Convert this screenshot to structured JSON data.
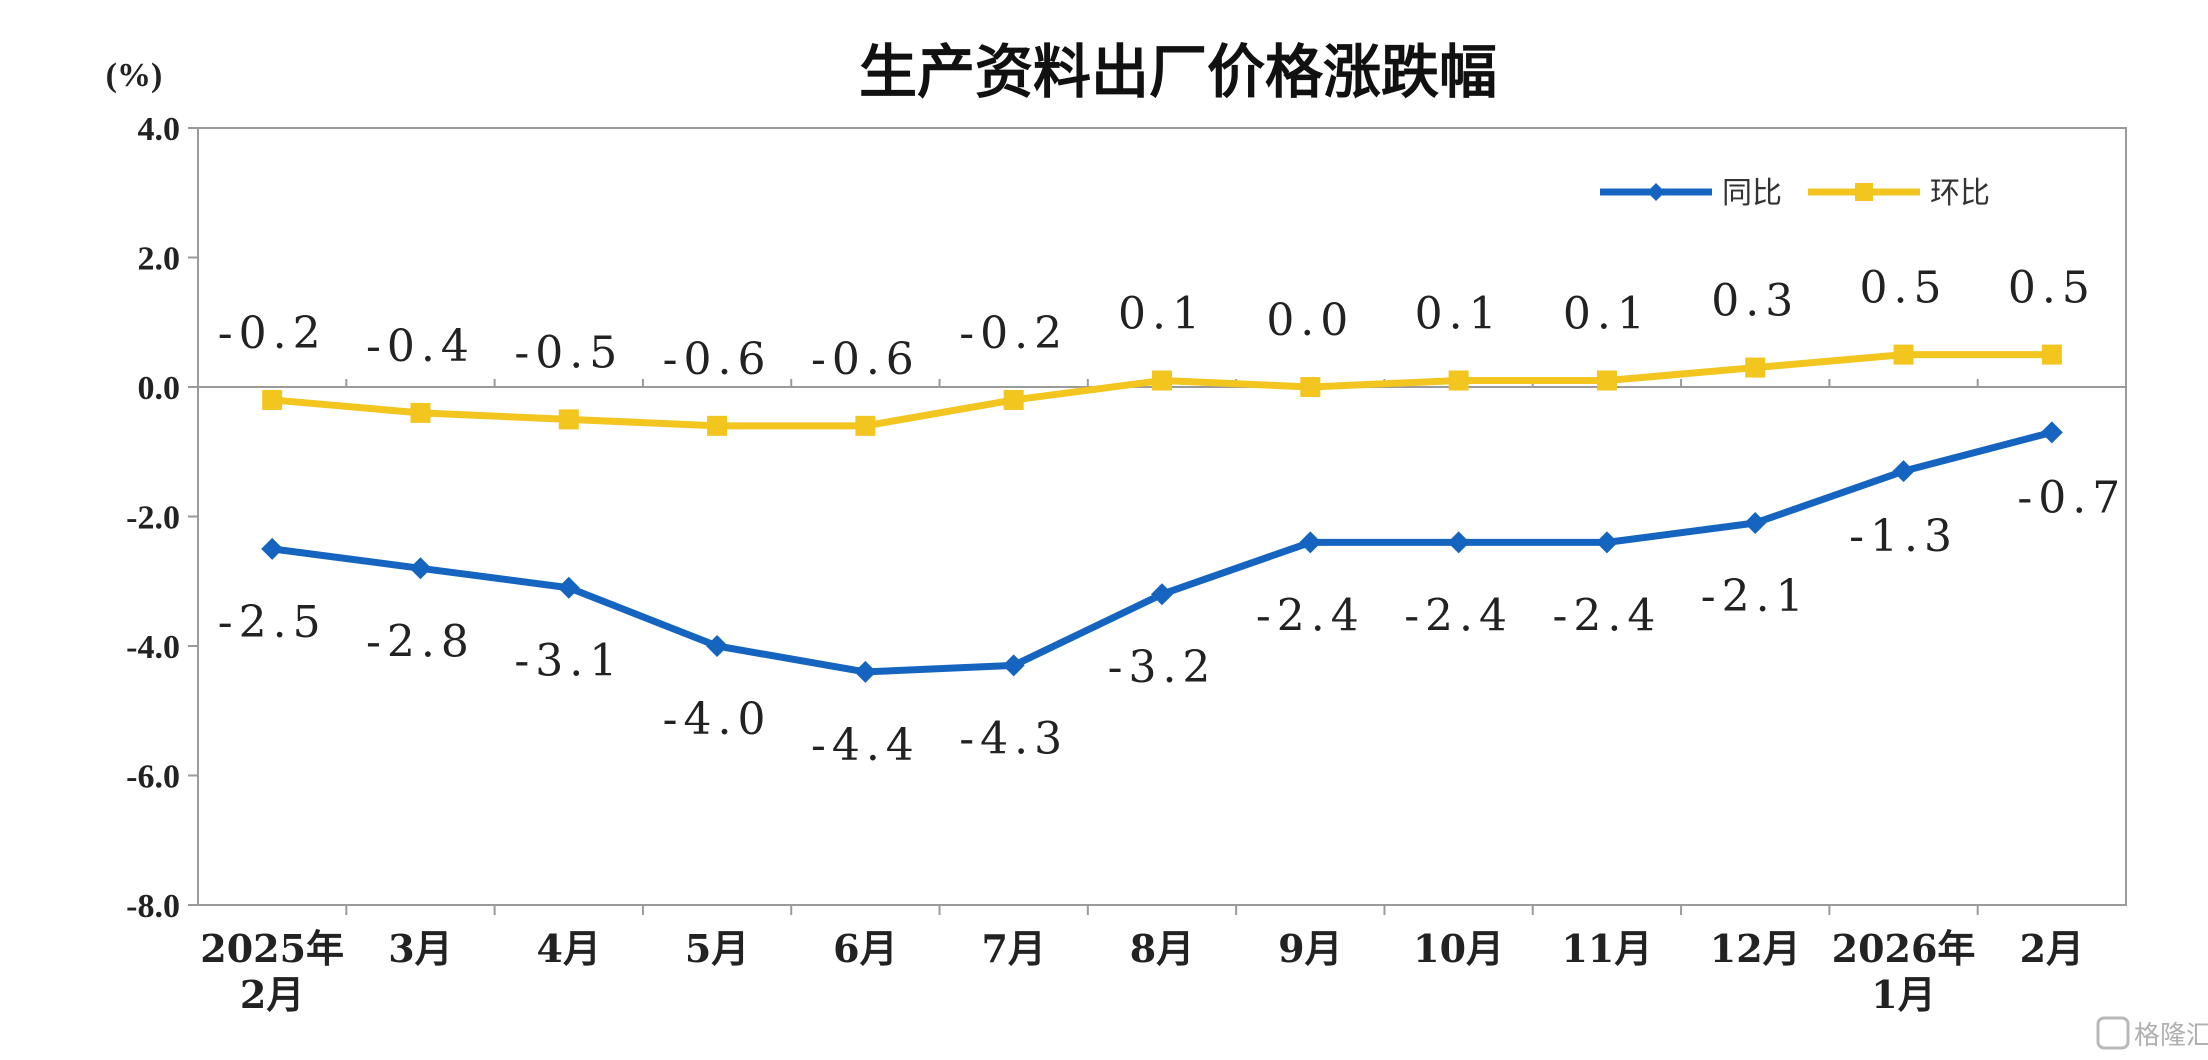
{
  "watermark": "格隆汇",
  "chart_data": {
    "type": "line",
    "title": "生产资料出厂价格涨跌幅",
    "unit": "(%)",
    "ylim": [
      -8.0,
      4.0
    ],
    "yticks": [
      "4.0",
      "2.0",
      "0.0",
      "-2.0",
      "-4.0",
      "-6.0",
      "-8.0"
    ],
    "ytick_values": [
      4,
      2,
      0,
      -2,
      -4,
      -6,
      -8
    ],
    "categories": [
      [
        "2025年",
        "2月"
      ],
      [
        "3月"
      ],
      [
        "4月"
      ],
      [
        "5月"
      ],
      [
        "6月"
      ],
      [
        "7月"
      ],
      [
        "8月"
      ],
      [
        "9月"
      ],
      [
        "10月"
      ],
      [
        "11月"
      ],
      [
        "12月"
      ],
      [
        "2026年",
        "1月"
      ],
      [
        "2月"
      ]
    ],
    "legend_position": "top-right",
    "grid": false,
    "series": [
      {
        "name": "同比",
        "color": "#1565C0",
        "marker": "diamond",
        "label_position": "below",
        "values": [
          -2.5,
          -2.8,
          -3.1,
          -4.0,
          -4.4,
          -4.3,
          -3.2,
          -2.4,
          -2.4,
          -2.4,
          -2.1,
          -1.3,
          -0.7
        ],
        "labels": [
          "-2.5",
          "-2.8",
          "-3.1",
          "-4.0",
          "-4.4",
          "-4.3",
          "-3.2",
          "-2.4",
          "-2.4",
          "-2.4",
          "-2.1",
          "-1.3",
          "-0.7"
        ]
      },
      {
        "name": "环比",
        "color": "#F2C51F",
        "marker": "square",
        "label_position": "above",
        "values": [
          -0.2,
          -0.4,
          -0.5,
          -0.6,
          -0.6,
          -0.2,
          0.1,
          0.0,
          0.1,
          0.1,
          0.3,
          0.5,
          0.5
        ],
        "labels": [
          "-0.2",
          "-0.4",
          "-0.5",
          "-0.6",
          "-0.6",
          "-0.2",
          "0.1",
          "0.0",
          "0.1",
          "0.1",
          "0.3",
          "0.5",
          "0.5"
        ]
      }
    ]
  }
}
